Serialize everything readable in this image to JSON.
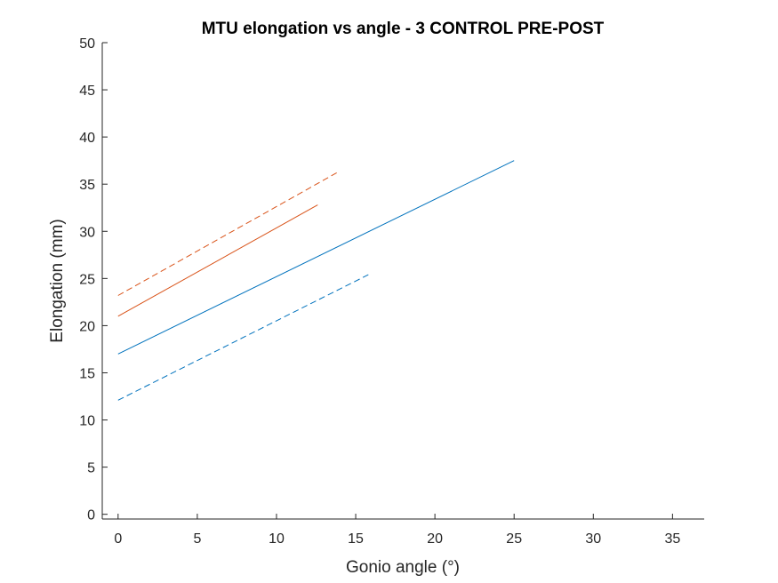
{
  "chart_data": {
    "type": "line",
    "title": "MTU elongation vs angle - 3 CONTROL PRE-POST",
    "xlabel": "Gonio angle (°)",
    "ylabel": "Elongation (mm)",
    "xlim": [
      -1,
      37
    ],
    "ylim": [
      -0.5,
      50
    ],
    "xticks": [
      0,
      5,
      10,
      15,
      20,
      25,
      30,
      35
    ],
    "yticks": [
      0,
      5,
      10,
      15,
      20,
      25,
      30,
      35,
      40,
      45,
      50
    ],
    "grid": false,
    "legend": "none",
    "series": [
      {
        "color": "#0072BD",
        "style": "solid",
        "x": [
          0,
          25
        ],
        "y": [
          17.0,
          37.5
        ]
      },
      {
        "color": "#0072BD",
        "style": "dashed",
        "x": [
          0,
          15.8
        ],
        "y": [
          12.1,
          25.4
        ]
      },
      {
        "color": "#D95319",
        "style": "solid",
        "x": [
          0,
          12.6
        ],
        "y": [
          21.0,
          32.8
        ]
      },
      {
        "color": "#D95319",
        "style": "dashed",
        "x": [
          0,
          13.9
        ],
        "y": [
          23.2,
          36.3
        ]
      }
    ]
  },
  "colors": {
    "axis": "#262626",
    "background": "#ffffff"
  }
}
